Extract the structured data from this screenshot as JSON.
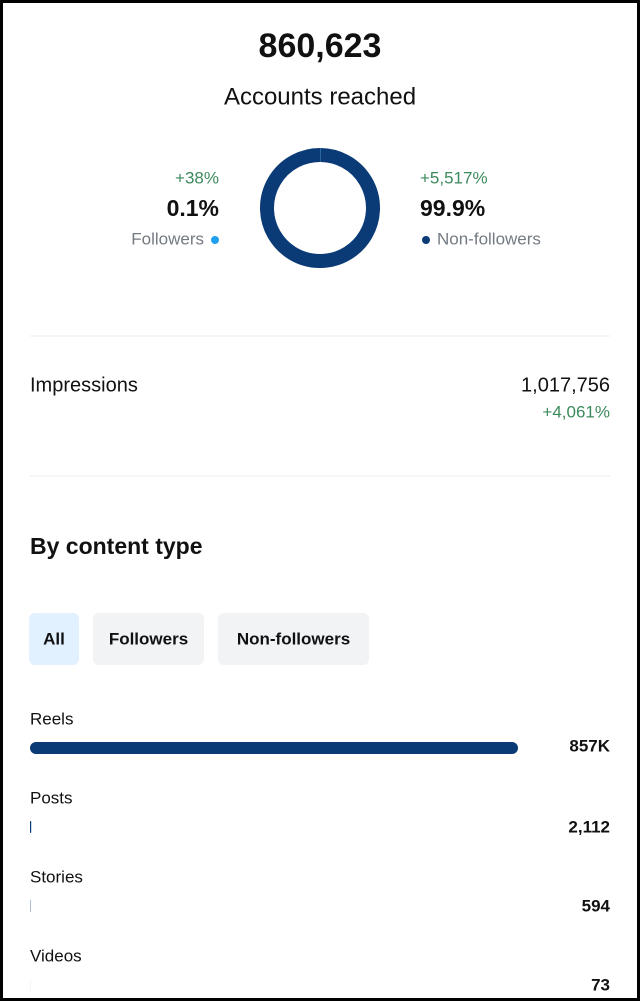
{
  "summary": {
    "value": "860,623",
    "label": "Accounts reached"
  },
  "audience": {
    "type": "pie",
    "segments": [
      {
        "name": "Followers",
        "change": "+38%",
        "value": 0.1,
        "value_label": "0.1%",
        "color": "#1fa0f0"
      },
      {
        "name": "Non-followers",
        "change": "+5,517%",
        "value": 99.9,
        "value_label": "99.9%",
        "color": "#0b3b77"
      }
    ]
  },
  "impressions": {
    "label": "Impressions",
    "value": "1,017,756",
    "change": "+4,061%"
  },
  "content_type": {
    "title": "By content type",
    "tabs": [
      {
        "label": "All",
        "selected": true
      },
      {
        "label": "Followers",
        "selected": false
      },
      {
        "label": "Non-followers",
        "selected": false
      }
    ],
    "type": "bar",
    "color": "#0b3b77",
    "categories": [
      "Reels",
      "Posts",
      "Stories",
      "Videos"
    ],
    "values": [
      857000,
      2112,
      594,
      73
    ],
    "value_labels": [
      "857K",
      "2,112",
      "594",
      "73"
    ]
  }
}
